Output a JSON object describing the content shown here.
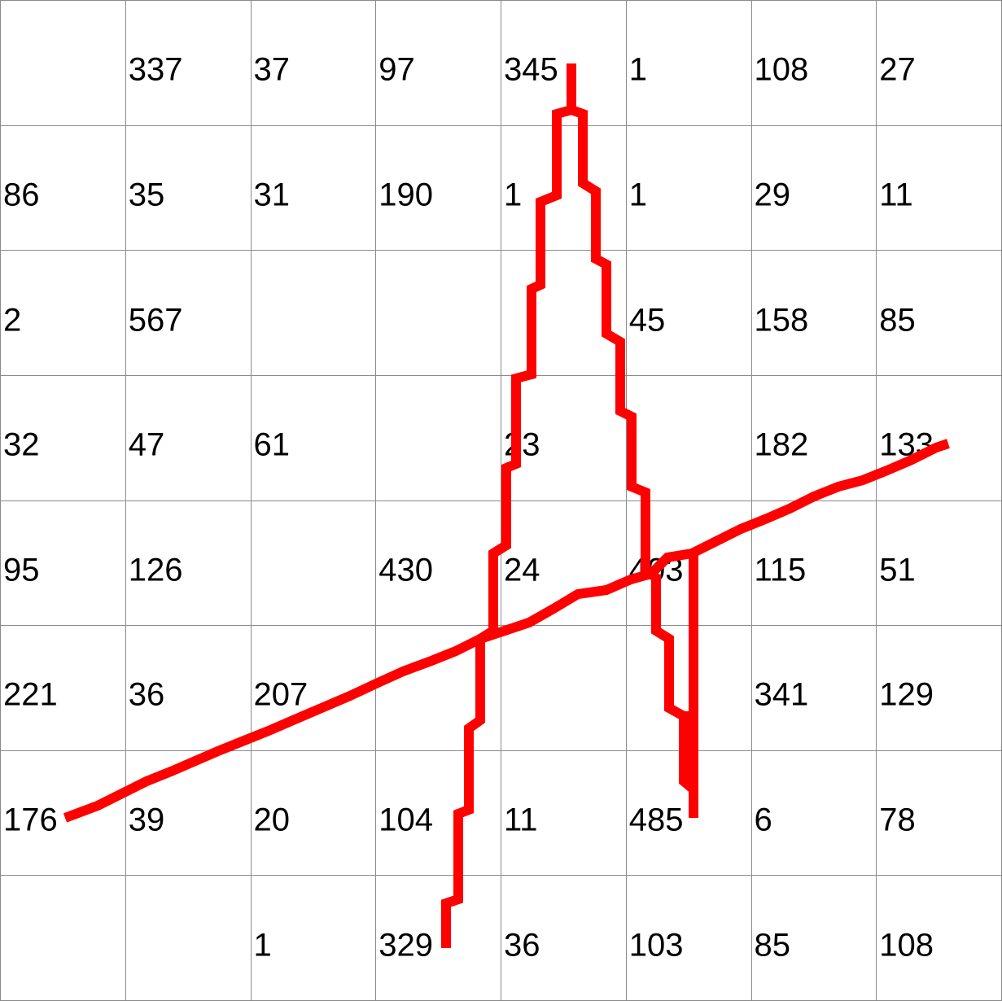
{
  "grid": {
    "rows": [
      [
        "",
        "337",
        "37",
        "97",
        "345",
        "1",
        "108",
        "27"
      ],
      [
        "86",
        "35",
        "31",
        "190",
        "1",
        "1",
        "29",
        "11"
      ],
      [
        "2",
        "567",
        "",
        "",
        "",
        "45",
        "158",
        "85"
      ],
      [
        "32",
        "47",
        "61",
        "",
        "23",
        "",
        "182",
        "133"
      ],
      [
        "95",
        "126",
        "",
        "430",
        "24",
        "403",
        "115",
        "51"
      ],
      [
        "221",
        "36",
        "207",
        "",
        "",
        "",
        "341",
        "129"
      ],
      [
        "176",
        "39",
        "20",
        "104",
        "11",
        "485",
        "6",
        "78"
      ],
      [
        "",
        "",
        "1",
        "329",
        "36",
        "103",
        "85",
        "108"
      ]
    ]
  },
  "colors": {
    "stroke": "#ff0000",
    "grid_line": "#8a8a8a",
    "text": "#000000"
  }
}
